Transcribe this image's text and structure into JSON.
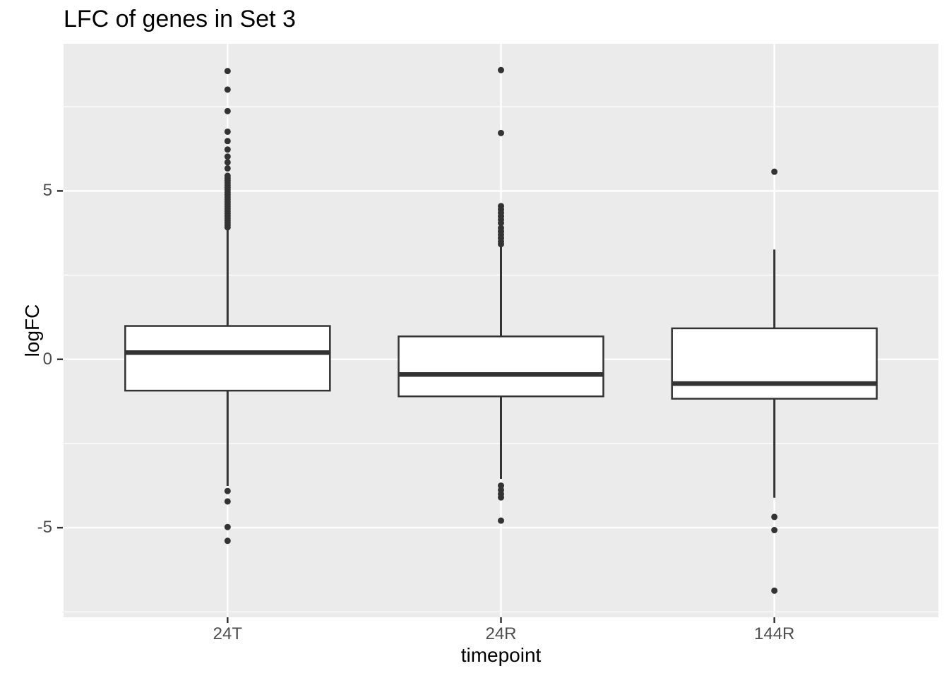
{
  "chart_data": {
    "type": "boxplot",
    "title": "LFC of genes in Set 3",
    "xlabel": "timepoint",
    "ylabel": "logFC",
    "categories": [
      "24T",
      "24R",
      "144R"
    ],
    "ylim": [
      -7.66,
      9.37
    ],
    "y_major_ticks": [
      5,
      0,
      -5
    ],
    "y_tick_labels": [
      "5",
      "0",
      "-5"
    ],
    "y_minor_ticks": [
      7.5,
      2.5,
      -2.5,
      -7.5
    ],
    "grid": "horizontal major+minor white lines; vertical white line at each category",
    "legend": "none",
    "series": [
      {
        "name": "24T",
        "q1": -0.93,
        "median": 0.2,
        "q3": 0.99,
        "whisker_low": -3.76,
        "whisker_high": 3.88,
        "outliers_high": [
          8.56,
          8.01,
          7.37,
          6.76,
          6.48,
          6.23,
          6.02,
          5.85,
          5.67,
          5.45,
          5.38,
          5.31,
          5.24,
          5.17,
          5.1,
          5.03,
          4.96,
          4.89,
          4.82,
          4.75,
          4.68,
          4.61,
          4.54,
          4.47,
          4.4,
          4.33,
          4.26,
          4.19,
          4.12,
          4.05,
          3.98,
          3.92
        ],
        "outliers_low": [
          -3.91,
          -4.22,
          -4.98,
          -5.39
        ]
      },
      {
        "name": "24R",
        "q1": -1.1,
        "median": -0.45,
        "q3": 0.68,
        "whisker_low": -3.55,
        "whisker_high": 3.37,
        "outliers_high": [
          8.59,
          6.72,
          4.55,
          4.45,
          4.35,
          4.25,
          4.15,
          4.05,
          3.9,
          3.8,
          3.7,
          3.6,
          3.5,
          3.42
        ],
        "outliers_low": [
          -3.75,
          -3.88,
          -4.0,
          -4.1,
          -4.79
        ]
      },
      {
        "name": "144R",
        "q1": -1.17,
        "median": -0.72,
        "q3": 0.92,
        "whisker_low": -4.11,
        "whisker_high": 3.26,
        "outliers_high": [
          5.57
        ],
        "outliers_low": [
          -4.68,
          -5.07,
          -6.87
        ]
      }
    ],
    "colors": {
      "panel_bg": "#EBEBEB",
      "grid": "#FFFFFF",
      "box_line": "#333333",
      "box_fill": "#FFFFFF",
      "outlier": "#333333",
      "tick_mark": "#333333",
      "tick_text": "#4D4D4D",
      "title_text": "#000000"
    }
  }
}
